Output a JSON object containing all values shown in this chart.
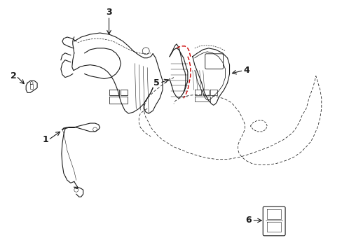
{
  "background_color": "#ffffff",
  "line_color": "#1a1a1a",
  "red_color": "#cc0000",
  "figsize": [
    4.89,
    3.6
  ],
  "dpi": 100,
  "lw": 0.8,
  "lw_thick": 1.2
}
